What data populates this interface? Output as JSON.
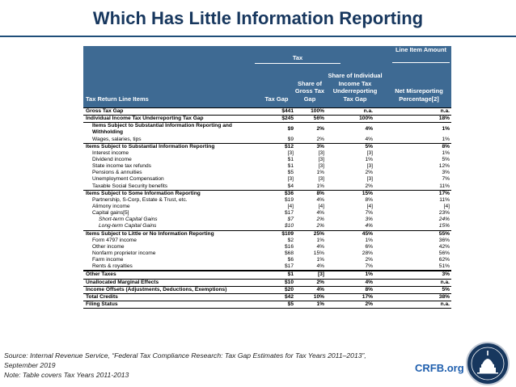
{
  "title": "Which Has Little Information Reporting",
  "header": {
    "tax_group": "Tax",
    "line_item_group": "Line Item Amount",
    "col_label": "Tax Return Line Items",
    "col_gap": "Tax Gap",
    "col_share": "Share of Gross Tax Gap",
    "col_indiv": "Share of Individual Income Tax Underreporting Tax Gap",
    "col_misrep": "Net Misreporting Percentage[2]"
  },
  "rows": [
    {
      "label": "Gross Tax Gap",
      "gap": "$441",
      "share": "100%",
      "indiv": "n.a.",
      "misrep": "n.a."
    },
    {
      "label": "Individual Income Tax  Underreporting Tax Gap",
      "gap": "$245",
      "share": "56%",
      "indiv": "100%",
      "misrep": "18%"
    },
    {
      "label": "Items Subject to Substantial Information Reporting and Withholding",
      "gap": "$9",
      "share": "2%",
      "indiv": "4%",
      "misrep": "1%"
    },
    {
      "label": "Wages, salaries, tips",
      "gap": "$9",
      "share": "2%",
      "indiv": "4%",
      "misrep": "1%"
    },
    {
      "label": "Items Subject to Substantial Information Reporting",
      "gap": "$12",
      "share": "3%",
      "indiv": "5%",
      "misrep": "8%"
    },
    {
      "label": "Interest income",
      "gap": "[3]",
      "share": "[3]",
      "indiv": "[3]",
      "misrep": "1%"
    },
    {
      "label": "Dividend income",
      "gap": "$1",
      "share": "[3]",
      "indiv": "1%",
      "misrep": "5%"
    },
    {
      "label": "State income tax refunds",
      "gap": "$1",
      "share": "[3]",
      "indiv": "[3]",
      "misrep": "12%"
    },
    {
      "label": "Pensions & annuities",
      "gap": "$5",
      "share": "1%",
      "indiv": "2%",
      "misrep": "3%"
    },
    {
      "label": "Unemployment Compensation",
      "gap": "[3]",
      "share": "[3]",
      "indiv": "[3]",
      "misrep": "7%"
    },
    {
      "label": "Taxable Social Security benefits",
      "gap": "$4",
      "share": "1%",
      "indiv": "2%",
      "misrep": "11%"
    },
    {
      "label": "Items Subject to Some Information Reporting",
      "gap": "$36",
      "share": "8%",
      "indiv": "15%",
      "misrep": "17%"
    },
    {
      "label": "Partnership, S-Corp, Estate & Trust, etc.",
      "gap": "$19",
      "share": "4%",
      "indiv": "8%",
      "misrep": "11%"
    },
    {
      "label": "Alimony income",
      "gap": "[4]",
      "share": "[4]",
      "indiv": "[4]",
      "misrep": "[4]"
    },
    {
      "label": "Capital gains[5]",
      "gap": "$17",
      "share": "4%",
      "indiv": "7%",
      "misrep": "23%"
    },
    {
      "label": "Short-term Capital Gains",
      "gap": "$7",
      "share": "2%",
      "indiv": "3%",
      "misrep": "24%"
    },
    {
      "label": "Long-term Capital Gains",
      "gap": "$10",
      "share": "2%",
      "indiv": "4%",
      "misrep": "15%"
    },
    {
      "label": "Items Subject to Little or No Information Reporting",
      "gap": "$109",
      "share": "25%",
      "indiv": "45%",
      "misrep": "55%"
    },
    {
      "label": "Form 4797 income",
      "gap": "$2",
      "share": "1%",
      "indiv": "1%",
      "misrep": "36%"
    },
    {
      "label": "Other income",
      "gap": "$16",
      "share": "4%",
      "indiv": "6%",
      "misrep": "42%"
    },
    {
      "label": "Nonfarm proprietor income",
      "gap": "$68",
      "share": "15%",
      "indiv": "28%",
      "misrep": "56%"
    },
    {
      "label": "Farm income",
      "gap": "$6",
      "share": "1%",
      "indiv": "2%",
      "misrep": "62%"
    },
    {
      "label": "Rents & royalties",
      "gap": "$17",
      "share": "4%",
      "indiv": "7%",
      "misrep": "51%"
    },
    {
      "label": "Other Taxes",
      "gap": "$1",
      "share": "[3]",
      "indiv": "1%",
      "misrep": "3%"
    },
    {
      "label": "Unallocated Marginal Effects",
      "gap": "$10",
      "share": "2%",
      "indiv": "4%",
      "misrep": "n.a."
    },
    {
      "label": "Income Offsets (Adjustments, Deductions, Exemptions)",
      "gap": "$20",
      "share": "4%",
      "indiv": "8%",
      "misrep": "5%"
    },
    {
      "label": "Total Credits",
      "gap": "$42",
      "share": "10%",
      "indiv": "17%",
      "misrep": "38%"
    },
    {
      "label": "Filing Status",
      "gap": "$5",
      "share": "1%",
      "indiv": "2%",
      "misrep": "n.a."
    }
  ],
  "footer": {
    "source_line1": "Source: Internal Revenue Service, “Federal Tax Compliance Research: Tax Gap Estimates for Tax Years 2011–2013”,",
    "source_line2": "September 2019",
    "note": "Note: Table covers Tax Years 2011-2013",
    "brand": "CRFB.org"
  },
  "colors": {
    "title": "#17375e",
    "header_bg": "#3e6a93",
    "brand": "#1f5fae"
  },
  "icons": {
    "seal": "capitol-seal-icon"
  }
}
